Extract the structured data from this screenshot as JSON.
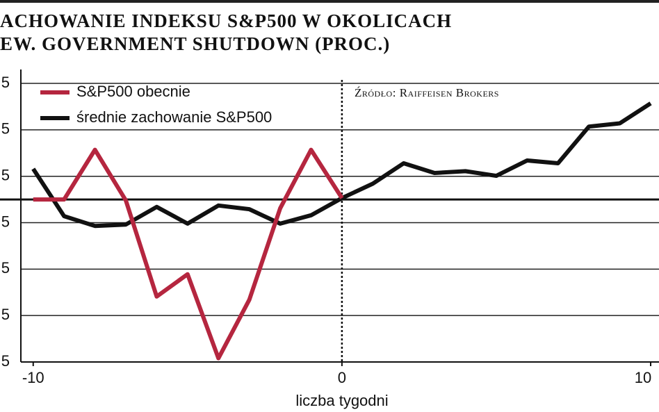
{
  "chart_data": {
    "type": "line",
    "title": [
      "ACHOWANIE INDEKSU S&P500 W OKOLICACH",
      "EW. GOVERNMENT SHUTDOWN (PROC.)"
    ],
    "annotation": "Źródło: Raiffeisen Brokers",
    "x_label": "liczba tygodni",
    "x": [
      -10,
      -9,
      -8,
      -7,
      -6,
      -5,
      -4,
      -3,
      -2,
      -1,
      0,
      1,
      2,
      3,
      4,
      5,
      6,
      7,
      8,
      9,
      10
    ],
    "series": [
      {
        "name": "S&P500 obecnie",
        "color": "#b5263f",
        "values": [
          0,
          0,
          1.07,
          -0.02,
          -2.09,
          -1.61,
          -3.42,
          -2.16,
          -0.19,
          1.07,
          0.03,
          null,
          null,
          null,
          null,
          null,
          null,
          null,
          null,
          null,
          null
        ]
      },
      {
        "name": "średnie zachowanie S&P500",
        "color": "#111111",
        "values": [
          0.66,
          -0.36,
          -0.57,
          -0.54,
          -0.16,
          -0.52,
          -0.13,
          -0.21,
          -0.52,
          -0.34,
          0.03,
          0.34,
          0.78,
          0.57,
          0.61,
          0.51,
          0.84,
          0.78,
          1.57,
          1.64,
          2.07
        ]
      }
    ],
    "xlim": [
      -10.4,
      10.27
    ],
    "xticks": [
      -10,
      0,
      {
        "value": 10,
        "label": "10"
      }
    ],
    "ylim": [
      -3.5,
      2.8
    ],
    "yticks": [
      {
        "value": 2.5,
        "label": "5"
      },
      {
        "value": 1.5,
        "label": "5"
      },
      {
        "value": 0.5,
        "label": "5"
      },
      {
        "value": -0.5,
        "label": "5"
      },
      {
        "value": -1.5,
        "label": "5"
      },
      {
        "value": -2.5,
        "label": "5"
      },
      {
        "value": -3.5,
        "label": "5"
      }
    ],
    "grid": true
  }
}
